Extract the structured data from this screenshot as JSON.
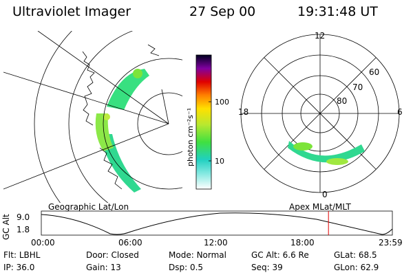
{
  "header": {
    "instrument": "Ultraviolet Imager",
    "date": "27 Sep 00",
    "time": "19:31:48 UT"
  },
  "colorbar": {
    "unit_label": "photon cm⁻²s⁻¹",
    "ticks": [
      "100",
      "10"
    ]
  },
  "polar_plot": {
    "clock_labels": [
      "12",
      "18",
      "6",
      "0"
    ],
    "lat_labels": [
      "60",
      "70",
      "80"
    ]
  },
  "panel_labels": {
    "left": "Geographic Lat/Lon",
    "right": "Apex MLat/MLT"
  },
  "altitude_plot": {
    "ylabel": "GC Alt",
    "y_ticks": [
      "9.0",
      "1.8"
    ],
    "x_ticks": [
      "00:00",
      "06:00",
      "12:00",
      "18:00",
      "23:59"
    ],
    "current_time_fraction": 0.818
  },
  "status": {
    "row1": [
      {
        "key": "Flt:",
        "val": "LBHL"
      },
      {
        "key": "Door:",
        "val": "Closed"
      },
      {
        "key": "Mode:",
        "val": "Normal"
      },
      {
        "key": "GC Alt:",
        "val": "6.6 Re"
      },
      {
        "key": "GLat:",
        "val": "68.5"
      }
    ],
    "row2": [
      {
        "key": "IP:",
        "val": "36.0"
      },
      {
        "key": "Gain:",
        "val": "13"
      },
      {
        "key": "Dsp:",
        "val": "0.5"
      },
      {
        "key": "Seq:",
        "val": "39"
      },
      {
        "key": "GLon:",
        "val": "62.9"
      }
    ]
  }
}
